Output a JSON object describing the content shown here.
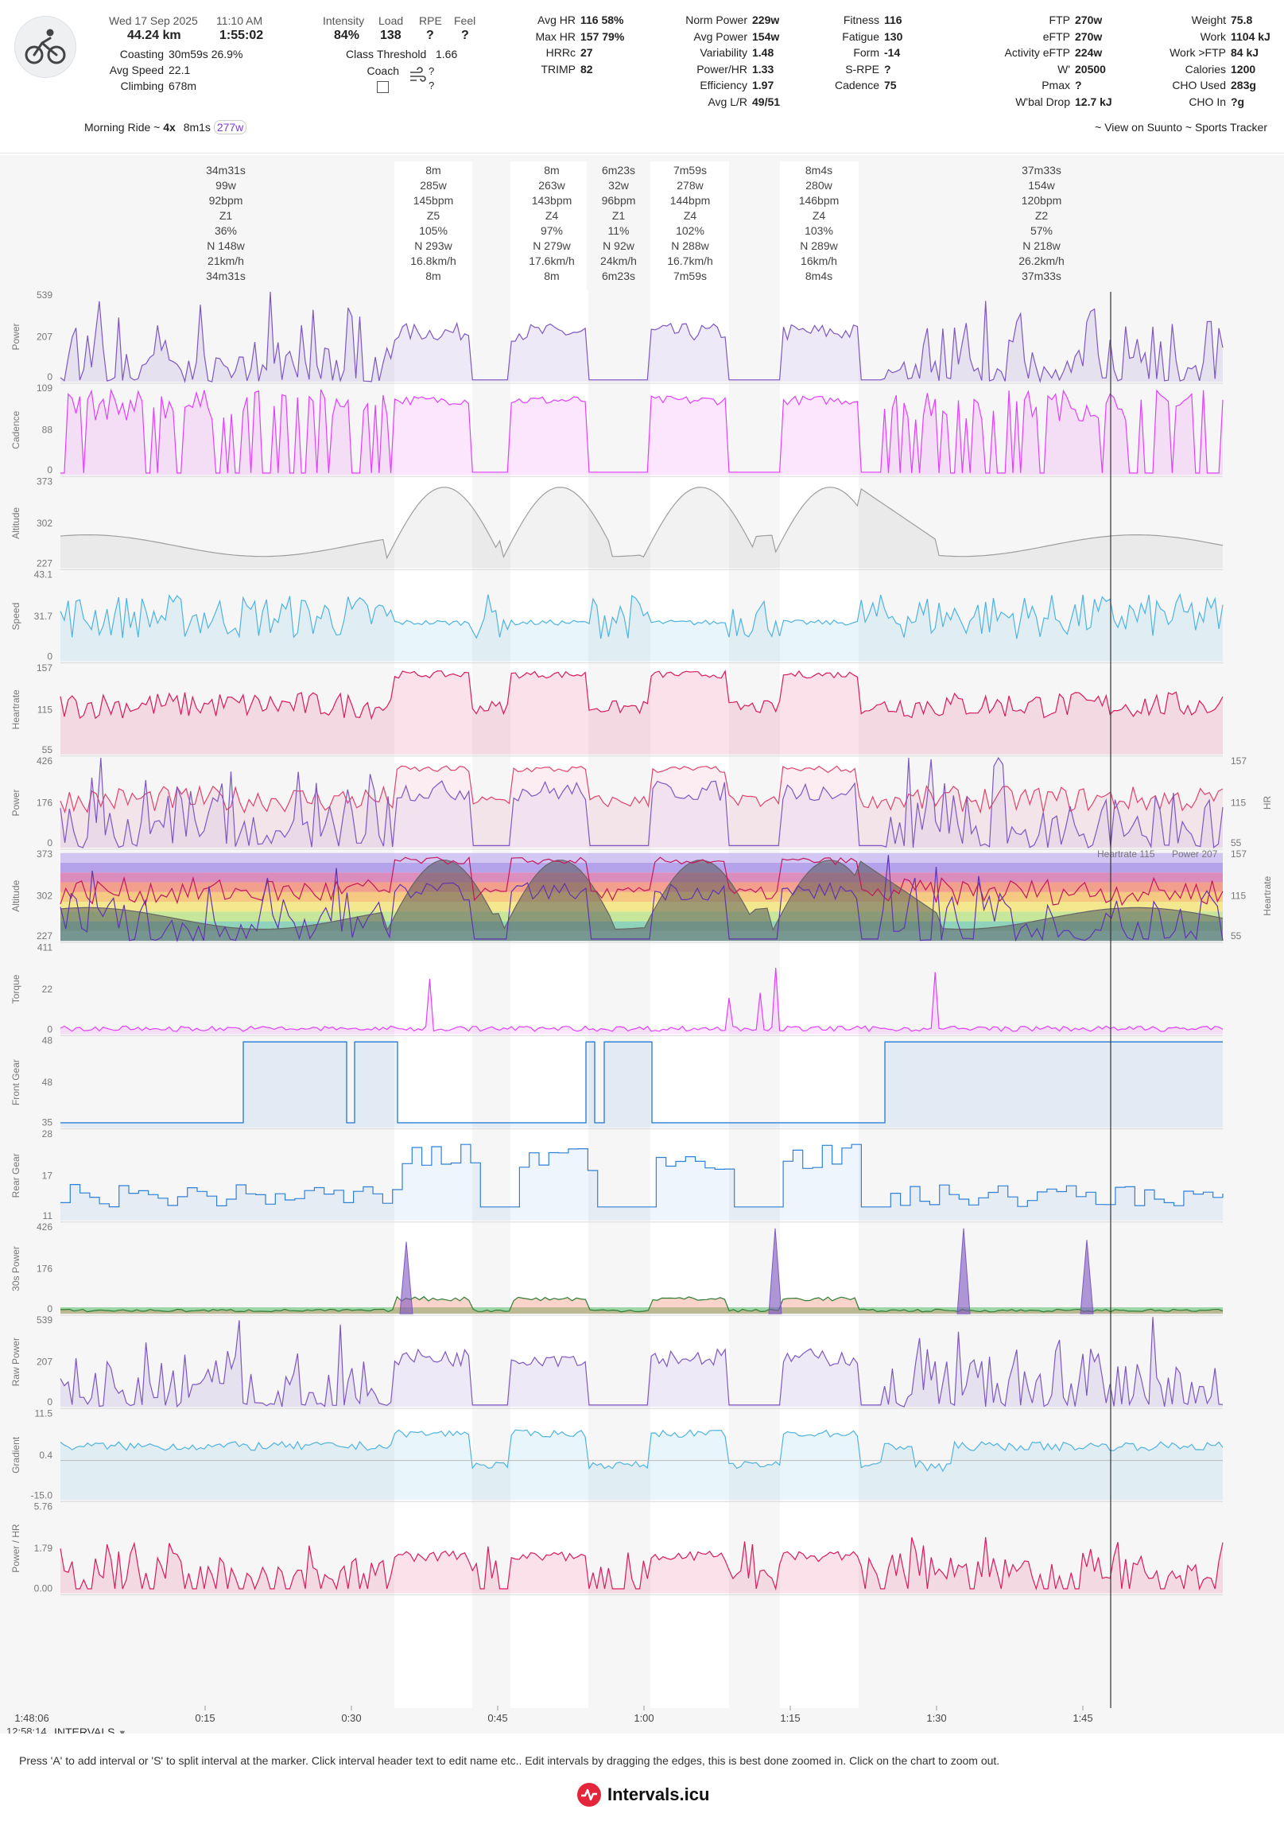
{
  "header": {
    "date": "Wed 17 Sep 2025",
    "time": "11:10 AM",
    "distance": "44.24 km",
    "duration": "1:55:02",
    "coasting_label": "Coasting",
    "coasting": "30m59s 26.9%",
    "avg_speed_label": "Avg Speed",
    "avg_speed": "22.1",
    "climbing_label": "Climbing",
    "climbing": "678m",
    "intensity_label": "Intensity",
    "intensity": "84%",
    "load_label": "Load",
    "load": "138",
    "rpe_label": "RPE",
    "rpe": "?",
    "feel_label": "Feel",
    "feel": "?",
    "class_label": "Class",
    "class_value": "Threshold",
    "class_num": "1.66",
    "coach_label": "Coach",
    "coach_q1": "?",
    "coach_q2": "?",
    "col3": [
      [
        "Avg HR",
        "116 58%"
      ],
      [
        "Max HR",
        "157 79%"
      ],
      [
        "HRRc",
        "27"
      ],
      [
        "TRIMP",
        "82"
      ]
    ],
    "col4": [
      [
        "Norm Power",
        "229w"
      ],
      [
        "Avg Power",
        "154w"
      ],
      [
        "Variability",
        "1.48"
      ],
      [
        "Power/HR",
        "1.33"
      ],
      [
        "Efficiency",
        "1.97"
      ],
      [
        "Avg L/R",
        "49/51"
      ]
    ],
    "col5": [
      [
        "Fitness",
        "116"
      ],
      [
        "Fatigue",
        "130"
      ],
      [
        "Form",
        "-14"
      ],
      [
        "S-RPE",
        "?"
      ],
      [
        "Cadence",
        "75"
      ]
    ],
    "col6": [
      [
        "FTP",
        "270w"
      ],
      [
        "eFTP",
        "270w"
      ],
      [
        "Activity eFTP",
        "224w"
      ],
      [
        "W'",
        "20500"
      ],
      [
        "Pmax",
        "?"
      ],
      [
        "W'bal Drop",
        "12.7 kJ"
      ]
    ],
    "col7": [
      [
        "Weight",
        "75.8"
      ],
      [
        "Work",
        "1104 kJ"
      ],
      [
        "Work >FTP",
        "84 kJ"
      ],
      [
        "Calories",
        "1200"
      ],
      [
        "CHO Used",
        "283g"
      ],
      [
        "CHO In",
        "?g"
      ]
    ],
    "title_text": "Morning Ride ~ ",
    "title_reps": "4x",
    "title_dur": "8m1s",
    "title_power": "277w",
    "view_on": "~ View on Suunto ~ Sports Tracker"
  },
  "intervals": [
    {
      "lines": [
        "34m31s",
        "99w",
        "92bpm",
        "Z1",
        "36%",
        "N 148w",
        "21km/h",
        "34m31s"
      ]
    },
    {
      "lines": [
        "8m",
        "285w",
        "145bpm",
        "Z5",
        "105%",
        "N 293w",
        "16.8km/h",
        "8m"
      ]
    },
    {
      "lines": [
        "8m",
        "263w",
        "143bpm",
        "Z4",
        "97%",
        "N 279w",
        "17.6km/h",
        "8m"
      ]
    },
    {
      "lines": [
        "6m23s",
        "32w",
        "96bpm",
        "Z1",
        "11%",
        "N 92w",
        "24km/h",
        "6m23s"
      ]
    },
    {
      "lines": [
        "7m59s",
        "278w",
        "144bpm",
        "Z4",
        "102%",
        "N 288w",
        "16.7km/h",
        "7m59s"
      ]
    },
    {
      "lines": [
        "8m4s",
        "280w",
        "146bpm",
        "Z4",
        "103%",
        "N 289w",
        "16km/h",
        "8m4s"
      ]
    },
    {
      "lines": [
        "37m33s",
        "154w",
        "120bpm",
        "Z2",
        "57%",
        "N 218w",
        "26.2km/h",
        "37m33s"
      ]
    }
  ],
  "panels": [
    {
      "label": "Power",
      "ticks": [
        "539",
        "207",
        "0"
      ],
      "color": "#7e57c2"
    },
    {
      "label": "Cadence",
      "ticks": [
        "109",
        "88",
        "0"
      ],
      "color": "#e040fb"
    },
    {
      "label": "Altitude",
      "ticks": [
        "373",
        "302",
        "227"
      ],
      "color": "#9e9e9e"
    },
    {
      "label": "Speed",
      "ticks": [
        "43.1",
        "31.7",
        "0"
      ],
      "color": "#4fb3e0"
    },
    {
      "label": "Heartrate",
      "ticks": [
        "157",
        "115",
        "55"
      ],
      "color": "#d81b60"
    },
    {
      "label": "Power",
      "ticks": [
        "426",
        "176",
        "0"
      ],
      "color": "#7e57c2",
      "right_label": "HR",
      "right_ticks": [
        "157",
        "115",
        "55"
      ]
    },
    {
      "label": "Altitude",
      "ticks": [
        "373",
        "302",
        "227"
      ],
      "color": "#9e9e9e",
      "right_label": "Heartrate",
      "right_ticks": [
        "157",
        "115",
        "55"
      ],
      "legend_hr": "Heartrate 115",
      "legend_pw": "Power 207"
    },
    {
      "label": "Torque",
      "ticks": [
        "411",
        "22",
        "0"
      ],
      "color": "#e040fb"
    },
    {
      "label": "Front Gear",
      "ticks": [
        "48",
        "48",
        "35"
      ],
      "color": "#2f80d8"
    },
    {
      "label": "Rear Gear",
      "ticks": [
        "28",
        "17",
        "11"
      ],
      "color": "#2f80d8"
    },
    {
      "label": "30s Power",
      "ticks": [
        "426",
        "176",
        "0"
      ],
      "color": "#7e57c2"
    },
    {
      "label": "Raw Power",
      "ticks": [
        "539",
        "207",
        "0"
      ],
      "color": "#7e57c2"
    },
    {
      "label": "Gradient",
      "ticks": [
        "11.5",
        "0.4",
        "-15.0"
      ],
      "color": "#4fb3e0"
    },
    {
      "label": "Power / HR",
      "ticks": [
        "5.76",
        "1.79",
        "0.00"
      ],
      "color": "#d81b60"
    }
  ],
  "xaxis": {
    "start": "1:48:06",
    "ticks": [
      "0:15",
      "0:30",
      "0:45",
      "1:00",
      "1:15",
      "1:30",
      "1:45"
    ],
    "cursor_time": "12:58:14"
  },
  "intervals_dropdown": "INTERVALS",
  "hint": "Press 'A' to add interval or 'S' to split interval at the marker. Click interval header text to edit name etc.. Edit intervals by dragging the edges, this is best done zoomed in. Click on the chart to zoom out.",
  "brand": "Intervals.icu"
}
